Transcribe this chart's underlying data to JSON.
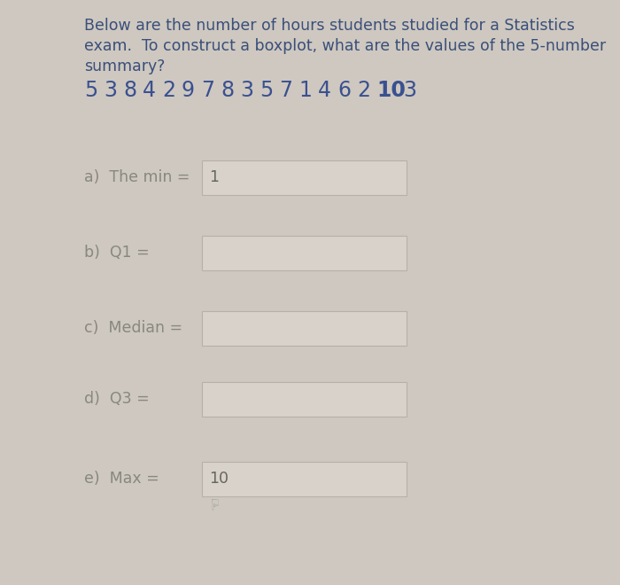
{
  "background_color": "#cec8c0",
  "box_face_color": "#d8d2ca",
  "box_edge_color": "#b8b0a8",
  "title_color": "#3a4f7a",
  "number_color": "#3a5090",
  "question_label_color": "#888880",
  "answer_color": "#666660",
  "title_line1": "Below are the number of hours students studied for a Statistics",
  "title_line2": "exam.  To construct a boxplot, what are the values of the 5-number",
  "title_line3": "summary?",
  "numbers": [
    "5",
    "3",
    "8",
    "4",
    "2",
    "9",
    "7",
    "8",
    "3",
    "5",
    "7",
    "1",
    "4",
    "6",
    "2",
    "10",
    "3"
  ],
  "numbers_bold": [
    false,
    false,
    false,
    false,
    false,
    false,
    false,
    false,
    false,
    false,
    false,
    false,
    false,
    false,
    false,
    true,
    false
  ],
  "questions": [
    {
      "label": "a)  The min = ",
      "answer": "1",
      "show_answer": true
    },
    {
      "label": "b)  Q1 =",
      "answer": "",
      "show_answer": false
    },
    {
      "label": "c)  Median =",
      "answer": "",
      "show_answer": false
    },
    {
      "label": "d)  Q3 =",
      "answer": "",
      "show_answer": false
    },
    {
      "label": "e)  Max = ",
      "answer": "10",
      "show_answer": true
    }
  ],
  "title_fontsize": 12.5,
  "number_fontsize": 17,
  "question_fontsize": 12.5,
  "answer_fontsize": 12.5
}
